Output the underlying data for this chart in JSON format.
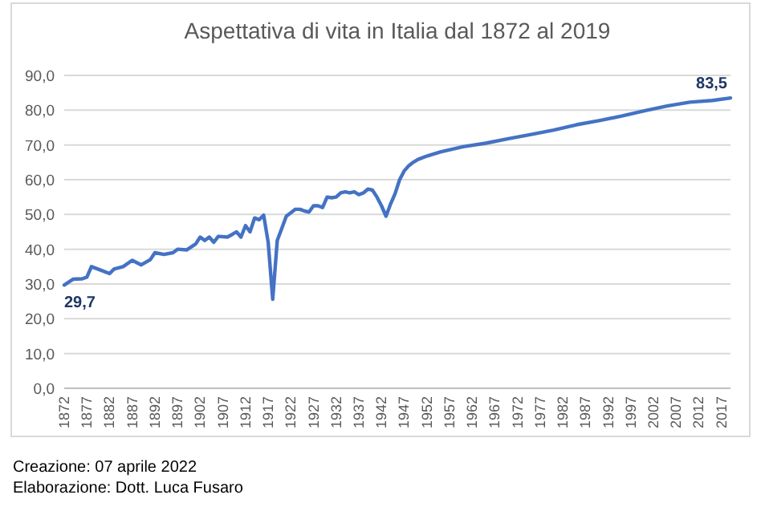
{
  "chart_data": {
    "type": "line",
    "title": "Aspettativa di vita in Italia dal 1872 al 2019",
    "x": [
      1872,
      1874,
      1876,
      1877,
      1878,
      1880,
      1882,
      1883,
      1885,
      1887,
      1889,
      1891,
      1892,
      1894,
      1896,
      1897,
      1899,
      1901,
      1902,
      1903,
      1904,
      1905,
      1906,
      1908,
      1909,
      1910,
      1911,
      1912,
      1913,
      1914,
      1915,
      1916,
      1917,
      1918,
      1919,
      1920,
      1921,
      1922,
      1923,
      1924,
      1925,
      1926,
      1927,
      1928,
      1929,
      1930,
      1931,
      1932,
      1933,
      1934,
      1935,
      1936,
      1937,
      1938,
      1939,
      1940,
      1941,
      1942,
      1943,
      1944,
      1945,
      1946,
      1947,
      1948,
      1949,
      1950,
      1952,
      1955,
      1960,
      1965,
      1970,
      1975,
      1980,
      1985,
      1990,
      1995,
      2000,
      2005,
      2010,
      2015,
      2019
    ],
    "series": [
      {
        "color": "#4472c4",
        "values": [
          29.7,
          31.4,
          31.5,
          32,
          35,
          34,
          33,
          34.3,
          35,
          36.8,
          35.5,
          37,
          39,
          38.5,
          39,
          40,
          39.8,
          41.5,
          43.5,
          42.5,
          43.5,
          42,
          43.7,
          43.5,
          44.2,
          45,
          43.5,
          46.8,
          45,
          49,
          48.5,
          49.8,
          42,
          25.6,
          42.5,
          46,
          49.5,
          50.5,
          51.5,
          51.5,
          51,
          50.7,
          52.5,
          52.5,
          52,
          55,
          54.8,
          55,
          56.2,
          56.5,
          56.2,
          56.5,
          55.7,
          56.2,
          57.3,
          57,
          55,
          52.5,
          49.5,
          53,
          56,
          60,
          62.5,
          64,
          65,
          65.8,
          66.8,
          68,
          69.5,
          70.5,
          71.8,
          73,
          74.3,
          75.8,
          77,
          78.3,
          79.8,
          81.2,
          82.3,
          82.8,
          83.5
        ],
        "value_labels": [
          "29,7",
          null,
          null,
          null,
          null,
          null,
          null,
          null,
          null,
          null,
          null,
          null,
          null,
          null,
          null,
          null,
          null,
          null,
          null,
          null,
          null,
          null,
          null,
          null,
          null,
          null,
          null,
          null,
          null,
          null,
          null,
          null,
          null,
          null,
          null,
          null,
          null,
          null,
          null,
          null,
          null,
          null,
          null,
          null,
          null,
          null,
          null,
          null,
          null,
          null,
          null,
          null,
          null,
          null,
          null,
          null,
          null,
          null,
          null,
          null,
          null,
          null,
          null,
          null,
          null,
          null,
          null,
          null,
          null,
          null,
          null,
          null,
          null,
          null,
          null,
          null,
          null,
          null,
          null,
          null,
          "83,5"
        ]
      }
    ],
    "xlim": [
      1872,
      2019
    ],
    "xticks": [
      1872,
      1877,
      1882,
      1887,
      1892,
      1897,
      1902,
      1907,
      1912,
      1917,
      1922,
      1927,
      1932,
      1937,
      1942,
      1947,
      1952,
      1957,
      1962,
      1967,
      1972,
      1977,
      1982,
      1987,
      1992,
      1997,
      2002,
      2007,
      2012,
      2017
    ],
    "ylim": [
      0,
      90
    ],
    "yticks": [
      {
        "value": 0,
        "label": "0,0"
      },
      {
        "value": 10,
        "label": "10,0"
      },
      {
        "value": 20,
        "label": "20,0"
      },
      {
        "value": 30,
        "label": "30,0"
      },
      {
        "value": 40,
        "label": "40,0"
      },
      {
        "value": 50,
        "label": "50,0"
      },
      {
        "value": 60,
        "label": "60,0"
      },
      {
        "value": 70,
        "label": "70,0"
      },
      {
        "value": 80,
        "label": "80,0"
      },
      {
        "value": 90,
        "label": "90,0"
      }
    ],
    "grid": "y",
    "marker": "none",
    "line_style": "solid",
    "annotations": [
      "Creazione: 07 aprile 2022",
      "Elaborazione: Dott. Luca Fusaro"
    ]
  }
}
